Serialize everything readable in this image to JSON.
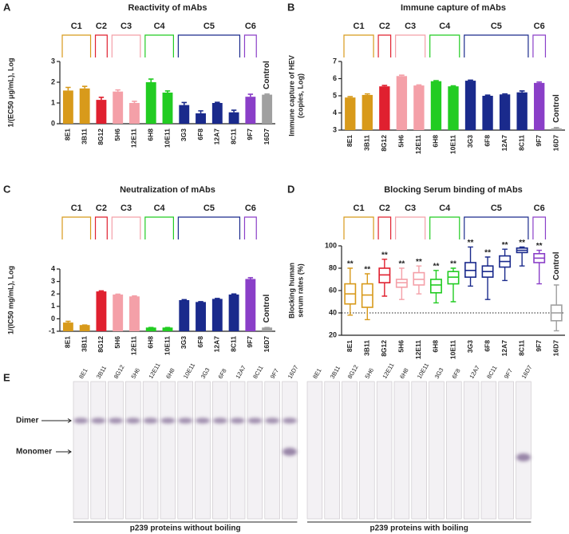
{
  "chart_data": [
    {
      "type": "bar",
      "panel": "A",
      "title": "Reactivity of mAbs",
      "y_label": [
        "1/(EC50 μg/mL), Log"
      ],
      "categories": [
        "8E1",
        "3B11",
        "8G12",
        "5H6",
        "12E11",
        "6H8",
        "10E11",
        "3G3",
        "6F8",
        "12A7",
        "8C11",
        "9F7",
        "16D7"
      ],
      "values": [
        1.6,
        1.7,
        1.15,
        1.55,
        1.0,
        2.0,
        1.5,
        0.9,
        0.5,
        1.0,
        0.55,
        1.3,
        1.4
      ],
      "errors": [
        0.15,
        0.1,
        0.12,
        0.08,
        0.08,
        0.15,
        0.08,
        0.12,
        0.12,
        0.03,
        0.1,
        0.12,
        0.03
      ],
      "colors": [
        "#d89a1b",
        "#d89a1b",
        "#e0202f",
        "#f4a0a8",
        "#f4a0a8",
        "#22cc22",
        "#22cc22",
        "#1a2a8c",
        "#1a2a8c",
        "#1a2a8c",
        "#1a2a8c",
        "#8a3fc8",
        "#a0a0a0"
      ],
      "groups": [
        {
          "label": "C1",
          "color": "#d89a1b",
          "span": [
            0,
            1
          ]
        },
        {
          "label": "C2",
          "color": "#e0202f",
          "span": [
            2,
            2
          ]
        },
        {
          "label": "C3",
          "color": "#f4a0a8",
          "span": [
            3,
            4
          ]
        },
        {
          "label": "C4",
          "color": "#22cc22",
          "span": [
            5,
            6
          ]
        },
        {
          "label": "C5",
          "color": "#1a2a8c",
          "span": [
            7,
            10
          ]
        },
        {
          "label": "C6",
          "color": "#8a3fc8",
          "span": [
            11,
            11
          ]
        }
      ],
      "annotation": "Control",
      "ylim": [
        0,
        3
      ],
      "yticks": [
        0,
        1,
        2,
        3
      ]
    },
    {
      "type": "bar",
      "panel": "B",
      "title": "Immune capture of mAbs",
      "y_label": [
        "Immune capture of HEV",
        "(copies, Log)"
      ],
      "categories": [
        "8E1",
        "3B11",
        "8G12",
        "5H6",
        "12E11",
        "6H8",
        "10E11",
        "3G3",
        "6F8",
        "12A7",
        "8C11",
        "9F7",
        "16D7"
      ],
      "values": [
        4.9,
        5.05,
        5.55,
        6.15,
        5.6,
        5.85,
        5.55,
        5.88,
        5.0,
        5.08,
        5.2,
        5.75,
        3.1
      ],
      "errors": [
        0.05,
        0.06,
        0.05,
        0.05,
        0.03,
        0.03,
        0.03,
        0.03,
        0.04,
        0.03,
        0.08,
        0.05,
        0.05
      ],
      "colors": [
        "#d89a1b",
        "#d89a1b",
        "#e0202f",
        "#f4a0a8",
        "#f4a0a8",
        "#22cc22",
        "#22cc22",
        "#1a2a8c",
        "#1a2a8c",
        "#1a2a8c",
        "#1a2a8c",
        "#8a3fc8",
        "#a0a0a0"
      ],
      "groups": [
        {
          "label": "C1",
          "color": "#d89a1b",
          "span": [
            0,
            1
          ]
        },
        {
          "label": "C2",
          "color": "#e0202f",
          "span": [
            2,
            2
          ]
        },
        {
          "label": "C3",
          "color": "#f4a0a8",
          "span": [
            3,
            4
          ]
        },
        {
          "label": "C4",
          "color": "#22cc22",
          "span": [
            5,
            6
          ]
        },
        {
          "label": "C5",
          "color": "#1a2a8c",
          "span": [
            7,
            10
          ]
        },
        {
          "label": "C6",
          "color": "#8a3fc8",
          "span": [
            11,
            11
          ]
        }
      ],
      "annotation": "Control",
      "ylim": [
        3,
        7
      ],
      "yticks": [
        3,
        4,
        5,
        6,
        7
      ]
    },
    {
      "type": "bar",
      "panel": "C",
      "title": "Neutralization of mAbs",
      "y_label": [
        "1/(IC50 mg/mL), Log"
      ],
      "categories": [
        "8E1",
        "3B11",
        "8G12",
        "5H6",
        "12E11",
        "6H8",
        "10E11",
        "3G3",
        "6F8",
        "12A7",
        "8C11",
        "9F7",
        "16D7"
      ],
      "values": [
        -0.3,
        -0.5,
        2.2,
        1.95,
        1.8,
        -0.7,
        -0.7,
        1.5,
        1.35,
        1.6,
        1.95,
        3.2,
        -0.7
      ],
      "errors": [
        0.1,
        0.0,
        0.04,
        0.03,
        0.03,
        0.0,
        0.0,
        0.04,
        0.03,
        0.03,
        0.04,
        0.1,
        0.0
      ],
      "colors": [
        "#d89a1b",
        "#d89a1b",
        "#e0202f",
        "#f4a0a8",
        "#f4a0a8",
        "#22cc22",
        "#22cc22",
        "#1a2a8c",
        "#1a2a8c",
        "#1a2a8c",
        "#1a2a8c",
        "#8a3fc8",
        "#a0a0a0"
      ],
      "groups": [
        {
          "label": "C1",
          "color": "#d89a1b",
          "span": [
            0,
            1
          ]
        },
        {
          "label": "C2",
          "color": "#e0202f",
          "span": [
            2,
            2
          ]
        },
        {
          "label": "C3",
          "color": "#f4a0a8",
          "span": [
            3,
            4
          ]
        },
        {
          "label": "C4",
          "color": "#22cc22",
          "span": [
            5,
            6
          ]
        },
        {
          "label": "C5",
          "color": "#1a2a8c",
          "span": [
            7,
            10
          ]
        },
        {
          "label": "C6",
          "color": "#8a3fc8",
          "span": [
            11,
            11
          ]
        }
      ],
      "annotation": "Control",
      "ylim": [
        -1,
        4
      ],
      "yticks": [
        -1,
        0,
        1,
        2,
        3,
        4
      ]
    },
    {
      "type": "box",
      "panel": "D",
      "title": "Blocking Serum binding of mAbs",
      "y_label": [
        "Blocking human",
        "serum rates (%)"
      ],
      "categories": [
        "8E1",
        "3B11",
        "8G12",
        "5H6",
        "12E11",
        "6H8",
        "10E11",
        "3G3",
        "6F8",
        "12A7",
        "8C11",
        "9F7",
        "16D7"
      ],
      "min": [
        38,
        34,
        55,
        52,
        57,
        49,
        50,
        64,
        52,
        69,
        82,
        66,
        24
      ],
      "q1": [
        48,
        45,
        67,
        63,
        65,
        58,
        66,
        72,
        72,
        81,
        94,
        85,
        33
      ],
      "median": [
        57,
        56,
        74,
        67,
        70,
        65,
        72,
        78,
        77,
        86,
        96,
        89,
        40
      ],
      "q3": [
        66,
        66,
        80,
        70,
        76,
        70,
        77,
        85,
        82,
        91,
        98,
        93,
        47
      ],
      "max": [
        80,
        75,
        88,
        80,
        82,
        78,
        80,
        99,
        90,
        97,
        99,
        96,
        65
      ],
      "significance": [
        "**",
        "**",
        "**",
        "**",
        "**",
        "**",
        "**",
        "**",
        "**",
        "**",
        "**",
        "**",
        null
      ],
      "colors": [
        "#d89a1b",
        "#d89a1b",
        "#e0202f",
        "#f4a0a8",
        "#f4a0a8",
        "#22cc22",
        "#22cc22",
        "#1a2a8c",
        "#1a2a8c",
        "#1a2a8c",
        "#1a2a8c",
        "#8a3fc8",
        "#a0a0a0"
      ],
      "groups": [
        {
          "label": "C1",
          "color": "#d89a1b",
          "span": [
            0,
            1
          ]
        },
        {
          "label": "C2",
          "color": "#e0202f",
          "span": [
            2,
            2
          ]
        },
        {
          "label": "C3",
          "color": "#f4a0a8",
          "span": [
            3,
            4
          ]
        },
        {
          "label": "C4",
          "color": "#22cc22",
          "span": [
            5,
            6
          ]
        },
        {
          "label": "C5",
          "color": "#1a2a8c",
          "span": [
            7,
            10
          ]
        },
        {
          "label": "C6",
          "color": "#8a3fc8",
          "span": [
            11,
            11
          ]
        }
      ],
      "annotation": "Control",
      "reference_line": 40,
      "ylim": [
        20,
        100
      ],
      "yticks": [
        20,
        40,
        60,
        80,
        100
      ]
    }
  ],
  "panel_e": {
    "letter": "E",
    "lanes_left": [
      "8E1",
      "3B11",
      "8G12",
      "5H6",
      "12E11",
      "6H8",
      "10E11",
      "3G3",
      "6F8",
      "12A7",
      "8C11",
      "9F7",
      "16D7"
    ],
    "lanes_right": [
      "8E1",
      "3B11",
      "8G12",
      "5H6",
      "12E11",
      "6H8",
      "10E11",
      "3G3",
      "6F8",
      "12A7",
      "8C11",
      "9F7",
      "16D7"
    ],
    "band_labels": [
      "Dimer",
      "Monomer"
    ],
    "caption_left": "p239 proteins without boiling",
    "caption_right": "p239 proteins with boiling"
  }
}
